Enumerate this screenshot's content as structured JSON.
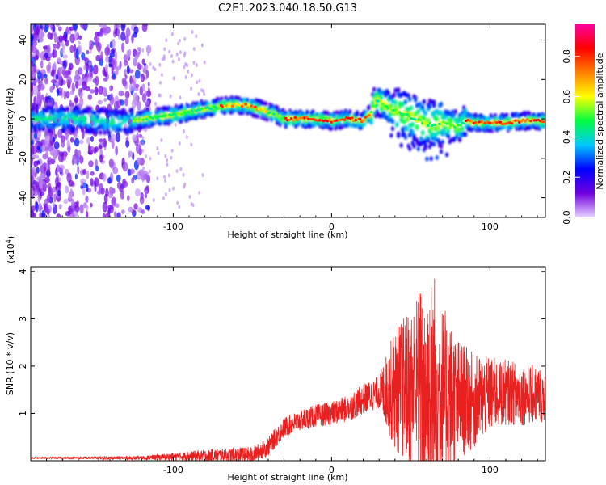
{
  "title": "C2E1.2023.040.18.50.G13",
  "chart_data": [
    {
      "type": "heatmap",
      "xlabel": "Height of straight line (km)",
      "ylabel": "Frequency (Hz)",
      "xlim": [
        -190,
        135
      ],
      "ylim": [
        -50,
        48
      ],
      "xticks": [
        -100,
        0,
        100
      ],
      "yticks": [
        -40,
        -20,
        0,
        20,
        40
      ],
      "colorbar": {
        "label": "Normalized spectral amplitude",
        "range": [
          0,
          0.96
        ],
        "ticks": [
          0.0,
          0.2,
          0.4,
          0.6,
          0.8
        ],
        "colormap": [
          "#e8d4ff",
          "#7000e0",
          "#0000ff",
          "#00c8ff",
          "#00ff40",
          "#ffff00",
          "#ff8000",
          "#ff0000",
          "#ff00a0"
        ]
      },
      "ridge": {
        "x": [
          -190,
          -160,
          -135,
          -125,
          -110,
          -100,
          -80,
          -65,
          -55,
          -45,
          -35,
          -30,
          -25,
          -10,
          0,
          10,
          20,
          25,
          28,
          32,
          40,
          50,
          60,
          70,
          80,
          85,
          90,
          100,
          110,
          120,
          135
        ],
        "y": [
          0,
          0,
          -2,
          -1,
          1,
          2,
          5,
          7,
          7,
          5,
          2,
          0,
          0,
          0,
          -1,
          0,
          -1,
          3,
          10,
          8,
          4,
          1,
          -3,
          -2,
          -4,
          -1,
          -2,
          -2,
          -2,
          -1,
          -1
        ]
      }
    },
    {
      "type": "line",
      "xlabel": "Height of straight line (km)",
      "ylabel": "SNR (10 * v/v)",
      "yscale_label": "(x10",
      "yscale_exp": "4",
      "xlim": [
        -190,
        135
      ],
      "ylim": [
        0,
        4.1
      ],
      "xticks": [
        -100,
        0,
        100
      ],
      "yticks": [
        1,
        2,
        3,
        4
      ],
      "color": "#e82020",
      "envelope": {
        "x": [
          -190,
          -120,
          -90,
          -70,
          -50,
          -40,
          -30,
          -20,
          -10,
          0,
          10,
          20,
          30,
          40,
          50,
          55,
          60,
          65,
          70,
          80,
          90,
          100,
          110,
          120,
          135
        ],
        "y": [
          0.06,
          0.06,
          0.1,
          0.12,
          0.12,
          0.3,
          0.7,
          0.85,
          0.95,
          1.0,
          1.1,
          1.3,
          1.45,
          1.5,
          1.55,
          1.6,
          1.5,
          1.45,
          1.4,
          1.3,
          1.25,
          1.4,
          1.45,
          1.4,
          1.4
        ]
      },
      "amplitude": {
        "x": [
          -190,
          -120,
          -40,
          0,
          30,
          40,
          50,
          60,
          65,
          70,
          80,
          90,
          100,
          110,
          135
        ],
        "y": [
          0.015,
          0.04,
          0.2,
          0.25,
          0.35,
          1.3,
          1.7,
          2.4,
          2.6,
          1.9,
          1.3,
          1.0,
          0.8,
          0.7,
          0.6
        ]
      }
    }
  ]
}
